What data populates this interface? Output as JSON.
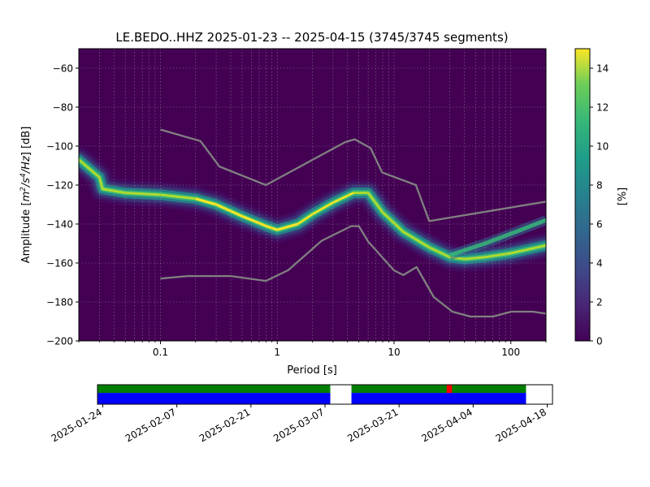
{
  "chart_data": [
    {
      "type": "heatmap",
      "title": "LE.BEDO..HHZ   2025-01-23 -- 2025-04-15  (3745/3745 segments)",
      "xlabel": "Period [s]",
      "ylabel_parts": [
        "Amplitude [",
        "m",
        "2",
        "/s",
        "4",
        "/Hz",
        "] [dB]"
      ],
      "x_scale": "log",
      "xlim": [
        0.02,
        200
      ],
      "ylim": [
        -200,
        -50
      ],
      "x_ticks": [
        {
          "value": 0.1,
          "label": "0.1"
        },
        {
          "value": 1,
          "label": "1"
        },
        {
          "value": 10,
          "label": "10"
        },
        {
          "value": 100,
          "label": "100"
        }
      ],
      "y_ticks": [
        {
          "value": -60,
          "label": "−60"
        },
        {
          "value": -80,
          "label": "−80"
        },
        {
          "value": -100,
          "label": "−100"
        },
        {
          "value": -120,
          "label": "−120"
        },
        {
          "value": -140,
          "label": "−140"
        },
        {
          "value": -160,
          "label": "−160"
        },
        {
          "value": -180,
          "label": "−180"
        },
        {
          "value": -200,
          "label": "−200"
        }
      ],
      "grid": true,
      "colorbar": {
        "label": "[%]",
        "range": [
          0,
          15
        ],
        "ticks": [
          {
            "value": 0,
            "label": "0"
          },
          {
            "value": 2,
            "label": "2"
          },
          {
            "value": 4,
            "label": "4"
          },
          {
            "value": 6,
            "label": "6"
          },
          {
            "value": 8,
            "label": "8"
          },
          {
            "value": 10,
            "label": "10"
          },
          {
            "value": 12,
            "label": "12"
          },
          {
            "value": 14,
            "label": "14"
          }
        ]
      },
      "ppsd_mode": [
        [
          0.02,
          -107
        ],
        [
          0.03,
          -116
        ],
        [
          0.032,
          -122
        ],
        [
          0.05,
          -124
        ],
        [
          0.1,
          -125
        ],
        [
          0.2,
          -127
        ],
        [
          0.3,
          -130
        ],
        [
          0.5,
          -136
        ],
        [
          0.8,
          -141
        ],
        [
          1.0,
          -143
        ],
        [
          1.5,
          -140
        ],
        [
          2.0,
          -135
        ],
        [
          3.0,
          -129
        ],
        [
          4.5,
          -124
        ],
        [
          6.0,
          -124
        ],
        [
          8.0,
          -134
        ],
        [
          12.0,
          -144
        ],
        [
          20.0,
          -152
        ],
        [
          30.0,
          -157
        ],
        [
          40.0,
          -158
        ],
        [
          60.0,
          -157
        ],
        [
          100.0,
          -155
        ],
        [
          200.0,
          -151
        ]
      ],
      "ppsd_upper_branch": [
        [
          30.0,
          -156
        ],
        [
          60.0,
          -150
        ],
        [
          100.0,
          -145
        ],
        [
          200.0,
          -138
        ]
      ],
      "noise_model_high": [
        [
          0.1,
          -91.5
        ],
        [
          0.22,
          -97.4
        ],
        [
          0.32,
          -110.5
        ],
        [
          0.8,
          -120
        ],
        [
          3.8,
          -98
        ],
        [
          4.6,
          -96.5
        ],
        [
          6.3,
          -101
        ],
        [
          7.9,
          -113.5
        ],
        [
          15.4,
          -120
        ],
        [
          20.0,
          -138.5
        ],
        [
          200.0,
          -128.5
        ]
      ],
      "noise_model_low": [
        [
          0.1,
          -168
        ],
        [
          0.17,
          -166.7
        ],
        [
          0.4,
          -166.7
        ],
        [
          0.8,
          -169.2
        ],
        [
          1.24,
          -163.7
        ],
        [
          2.4,
          -148.6
        ],
        [
          4.3,
          -141.1
        ],
        [
          5.0,
          -141.1
        ],
        [
          6.0,
          -149
        ],
        [
          10.0,
          -163.8
        ],
        [
          12.0,
          -166.2
        ],
        [
          15.6,
          -162.1
        ],
        [
          21.9,
          -177.5
        ],
        [
          31.6,
          -185
        ],
        [
          45.0,
          -187.5
        ],
        [
          70.0,
          -187.5
        ],
        [
          101.0,
          -185
        ],
        [
          154.0,
          -185
        ],
        [
          200.0,
          -186
        ]
      ]
    },
    {
      "type": "timeline",
      "x_range": [
        "2025-01-23",
        "2025-04-19"
      ],
      "x_tick_labels": [
        "2025-01-24",
        "2025-02-07",
        "2025-02-21",
        "2025-03-07",
        "2025-03-21",
        "2025-04-04",
        "2025-04-18"
      ],
      "x_tick_dates": [
        "2025-01-24",
        "2025-02-07",
        "2025-02-21",
        "2025-03-07",
        "2025-03-21",
        "2025-04-04",
        "2025-04-18"
      ],
      "available": [
        [
          "2025-01-23",
          "2025-03-08"
        ],
        [
          "2025-03-12",
          "2025-04-14"
        ]
      ],
      "used": [
        [
          "2025-01-23",
          "2025-03-08"
        ],
        [
          "2025-03-12",
          "2025-04-14"
        ]
      ],
      "gaps": [
        [
          "2025-03-30",
          "2025-03-31"
        ]
      ],
      "colors": {
        "available": "#008000",
        "used": "#0000ff",
        "gap": "#ff0000"
      }
    }
  ]
}
